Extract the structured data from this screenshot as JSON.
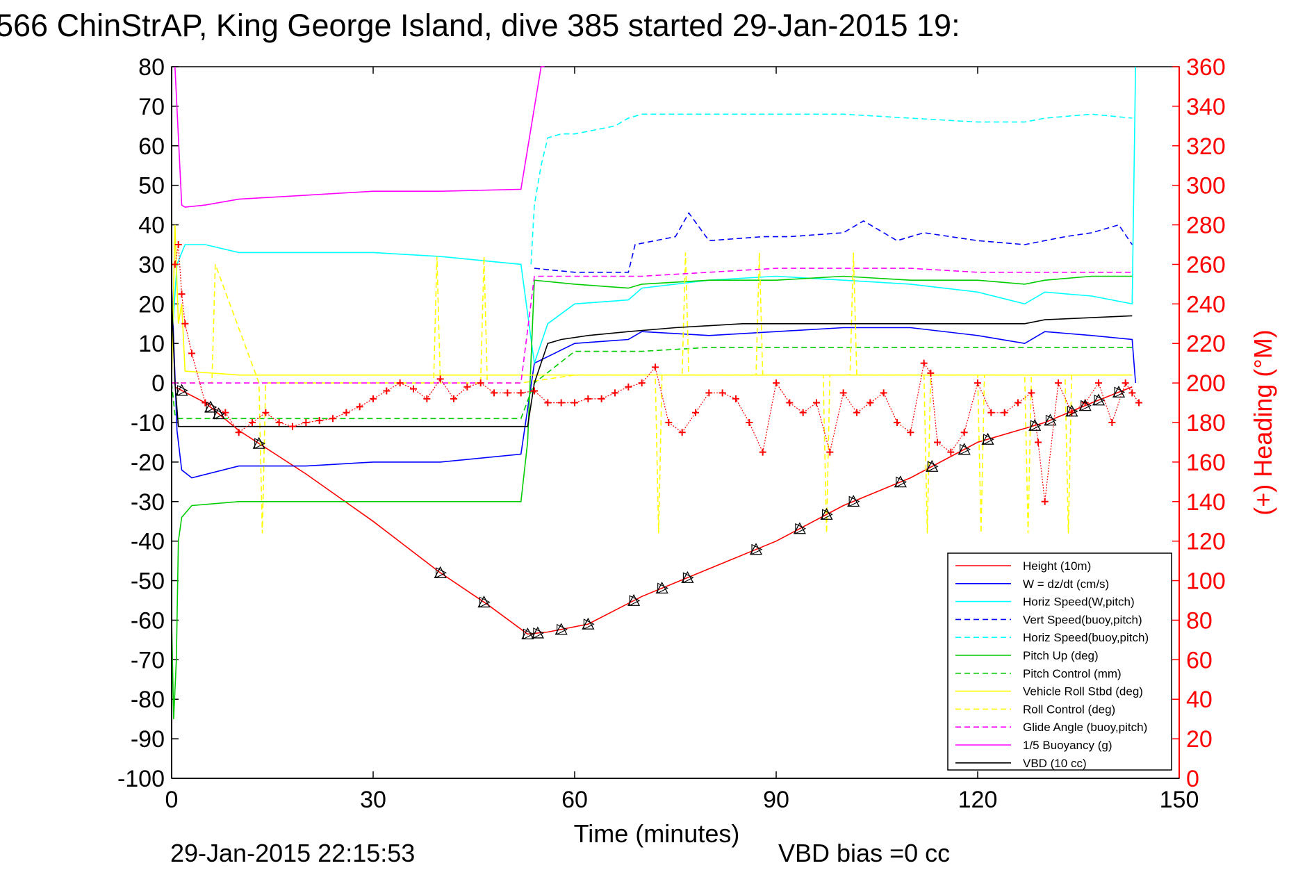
{
  "chart_data": {
    "type": "line",
    "title": "566 ChinStrAP, King George Island, dive 385 started 29-Jan-2015 19:",
    "xlabel": "Time (minutes)",
    "ylabel": "",
    "y2label": "(+) Heading (°M)",
    "xlim": [
      0,
      150
    ],
    "ylim": [
      -100,
      80
    ],
    "y2lim": [
      0,
      360
    ],
    "x_ticks": [
      "0",
      "30",
      "60",
      "90",
      "120",
      "150"
    ],
    "y_ticks": [
      "80",
      "70",
      "60",
      "50",
      "40",
      "30",
      "20",
      "10",
      "0",
      "-10",
      "-20",
      "-30",
      "-40",
      "-50",
      "-60",
      "-70",
      "-80",
      "-90",
      "-100"
    ],
    "y2_ticks": [
      "360",
      "340",
      "320",
      "300",
      "280",
      "260",
      "240",
      "220",
      "200",
      "180",
      "160",
      "140",
      "120",
      "100",
      "80",
      "60",
      "40",
      "20",
      "0"
    ],
    "footer_left": "29-Jan-2015 22:15:53",
    "footer_right": "VBD bias =0 cc",
    "legend_position": "lower-right",
    "series": [
      {
        "name": "Height (10m)",
        "color": "#ff0000",
        "style": "solid",
        "x": [
          0.5,
          5,
          10,
          20,
          30,
          40,
          47,
          53,
          56,
          62,
          70,
          80,
          90,
          100,
          110,
          120,
          130,
          137,
          143
        ],
        "y": [
          -1,
          -5,
          -12,
          -23,
          -35,
          -48,
          -56,
          -63.5,
          -63,
          -61,
          -54,
          -47,
          -40,
          -31,
          -24,
          -15,
          -10,
          -5,
          -1
        ]
      },
      {
        "name": "W = dz/dt (cm/s)",
        "color": "#0000ff",
        "style": "solid",
        "x": [
          0,
          0.8,
          1.5,
          3,
          10,
          20,
          30,
          40,
          52,
          54,
          60,
          68,
          70,
          80,
          90,
          100,
          110,
          120,
          127,
          130,
          137,
          143,
          143.5
        ],
        "y": [
          25,
          -12,
          -22,
          -24,
          -21,
          -21,
          -20,
          -20,
          -18,
          5,
          10,
          11,
          13,
          12,
          13,
          14,
          14,
          12,
          10,
          13,
          12,
          11,
          0
        ]
      },
      {
        "name": "Horiz Speed(W,pitch)",
        "color": "#00ffff",
        "style": "solid",
        "x": [
          0,
          0.8,
          2,
          5,
          10,
          20,
          30,
          40,
          52,
          54,
          56,
          60,
          68,
          70,
          80,
          90,
          100,
          110,
          120,
          127,
          130,
          137,
          143,
          143.5
        ],
        "y": [
          10,
          30,
          35,
          35,
          33,
          33,
          33,
          32,
          30,
          5,
          15,
          20,
          21,
          24,
          26,
          27,
          26,
          25,
          23,
          20,
          23,
          22,
          20,
          80
        ]
      },
      {
        "name": "Vert Speed(buoy,pitch)",
        "color": "#0000ff",
        "style": "dashed",
        "x": [
          54,
          60,
          68,
          69,
          75,
          77,
          80,
          88,
          92,
          100,
          103,
          108,
          112,
          120,
          127,
          133,
          137,
          141,
          143
        ],
        "y": [
          29,
          28,
          28,
          35,
          37,
          43,
          36,
          37,
          37,
          38,
          41,
          36,
          38,
          36,
          35,
          37,
          38,
          40,
          35
        ]
      },
      {
        "name": "Horiz Speed(buoy,pitch)",
        "color": "#00ffff",
        "style": "dashed",
        "x": [
          53.5,
          54,
          55,
          56,
          58,
          60,
          66,
          68,
          70,
          80,
          90,
          100,
          110,
          120,
          127,
          130,
          137,
          143
        ],
        "y": [
          30,
          45,
          55,
          62,
          63,
          63,
          65,
          67,
          68,
          68,
          68,
          68,
          67,
          66,
          66,
          67,
          68,
          67
        ]
      },
      {
        "name": "Pitch Up (deg)",
        "color": "#00cc00",
        "style": "solid",
        "x": [
          0,
          0.3,
          0.7,
          1,
          1.5,
          3,
          10,
          20,
          30,
          40,
          52,
          53,
          54,
          60,
          68,
          70,
          80,
          90,
          100,
          110,
          120,
          127,
          130,
          137,
          143
        ],
        "y": [
          -60,
          -85,
          -70,
          -40,
          -34,
          -31,
          -30,
          -30,
          -30,
          -30,
          -30,
          -15,
          26,
          25,
          24,
          25,
          26,
          26,
          27,
          26,
          26,
          25,
          26,
          27,
          27
        ]
      },
      {
        "name": "Pitch Control (mm)",
        "color": "#00cc00",
        "style": "dashed",
        "x": [
          0,
          0.5,
          1,
          10,
          30,
          52,
          54,
          60,
          70,
          80,
          100,
          120,
          143
        ],
        "y": [
          0,
          -8,
          -9,
          -9,
          -9,
          -9,
          0,
          8,
          8,
          9,
          9,
          9,
          9
        ]
      },
      {
        "name": "Vehicle Roll Stbd (deg)",
        "color": "#ffff00",
        "style": "solid",
        "x": [
          0,
          0.5,
          1,
          1.5,
          2,
          10,
          20,
          30,
          40,
          52,
          54,
          60,
          70,
          80,
          90,
          100,
          110,
          120,
          127,
          130,
          137,
          143
        ],
        "y": [
          0,
          40,
          15,
          20,
          3,
          2,
          2,
          2,
          2,
          2,
          2,
          2,
          2,
          2,
          2,
          2,
          2,
          2,
          2,
          2,
          2,
          2
        ]
      },
      {
        "name": "Roll Control (deg)",
        "color": "#ffff00",
        "style": "dashed",
        "x": [
          0,
          2,
          6,
          6.5,
          13,
          13.5,
          14,
          30,
          39,
          39.5,
          40,
          46,
          46.5,
          47,
          52,
          60,
          70,
          72,
          72.5,
          73,
          76,
          76.5,
          77,
          87,
          87.5,
          88,
          97,
          97.5,
          98,
          101,
          101.5,
          102,
          112,
          112.5,
          113,
          120,
          120.5,
          121,
          127,
          127.5,
          128,
          133,
          133.5,
          134,
          143
        ],
        "y": [
          0,
          0,
          0,
          30,
          0,
          -38,
          0,
          0,
          0,
          32,
          0,
          0,
          32,
          0,
          0,
          2,
          2,
          2,
          -38,
          2,
          2,
          33,
          2,
          2,
          33,
          2,
          2,
          -38,
          2,
          2,
          33,
          2,
          2,
          -38,
          2,
          2,
          -38,
          2,
          2,
          -38,
          2,
          2,
          -38,
          2,
          2
        ]
      },
      {
        "name": "Glide Angle (buoy,pitch)",
        "color": "#ff00ff",
        "style": "dashed",
        "x": [
          0,
          52,
          54,
          60,
          70,
          80,
          90,
          100,
          110,
          120,
          130,
          143
        ],
        "y": [
          0,
          0,
          27,
          27,
          27,
          28,
          29,
          29,
          29,
          28,
          28,
          28
        ]
      },
      {
        "name": "1/5 Buoyancy (g)",
        "color": "#ff00ff",
        "style": "solid",
        "x": [
          0.5,
          1.5,
          2,
          5,
          10,
          20,
          30,
          40,
          52,
          55,
          55.5
        ],
        "y": [
          80,
          45,
          44.5,
          45,
          46.5,
          47.5,
          48.5,
          48.5,
          49,
          80,
          80
        ]
      },
      {
        "name": "VBD (10 cc)",
        "color": "#000000",
        "style": "solid",
        "x": [
          0,
          0.5,
          1,
          52,
          53,
          54,
          56,
          58,
          62,
          68,
          75,
          85,
          95,
          110,
          127,
          130,
          143
        ],
        "y": [
          22,
          0,
          -11,
          -11,
          -11,
          0,
          10,
          11,
          12,
          13,
          14,
          15,
          15,
          15,
          15,
          16,
          17
        ]
      }
    ],
    "heading_series": {
      "name": "Heading",
      "axis": "right",
      "color": "#ff0000",
      "marker": "+",
      "x": [
        0.5,
        1,
        1.5,
        2,
        3,
        5,
        8,
        10,
        12,
        14,
        16,
        18,
        20,
        22,
        24,
        26,
        28,
        30,
        32,
        34,
        36,
        38,
        40,
        42,
        44,
        46,
        48,
        50,
        52,
        54,
        56,
        58,
        60,
        62,
        64,
        66,
        68,
        70,
        72,
        74,
        76,
        78,
        80,
        82,
        84,
        86,
        88,
        90,
        92,
        94,
        96,
        98,
        100,
        102,
        104,
        106,
        108,
        110,
        112,
        113,
        114,
        116,
        118,
        120,
        122,
        124,
        126,
        128,
        129,
        130,
        132,
        134,
        136,
        138,
        140,
        142,
        143,
        144
      ],
      "y": [
        260,
        270,
        245,
        230,
        215,
        190,
        185,
        175,
        180,
        185,
        180,
        178,
        180,
        181,
        182,
        185,
        188,
        192,
        196,
        200,
        197,
        192,
        202,
        192,
        198,
        200,
        195,
        195,
        195,
        196,
        190,
        190,
        190,
        192,
        192,
        195,
        198,
        200,
        208,
        180,
        175,
        185,
        195,
        195,
        192,
        180,
        165,
        200,
        190,
        185,
        190,
        165,
        195,
        185,
        190,
        195,
        180,
        175,
        210,
        205,
        170,
        165,
        175,
        200,
        185,
        185,
        190,
        195,
        170,
        140,
        200,
        185,
        190,
        200,
        180,
        200,
        195,
        190
      ]
    },
    "markers": {
      "color": "#000000",
      "x": [
        1.5,
        5.8,
        7,
        13,
        40,
        46.5,
        53,
        54.5,
        58,
        62,
        68.8,
        73,
        76.8,
        87,
        93.5,
        97.5,
        101.5,
        108.5,
        113.2,
        118,
        121.5,
        128.5,
        130.8,
        134,
        136,
        138,
        141
      ]
    }
  }
}
